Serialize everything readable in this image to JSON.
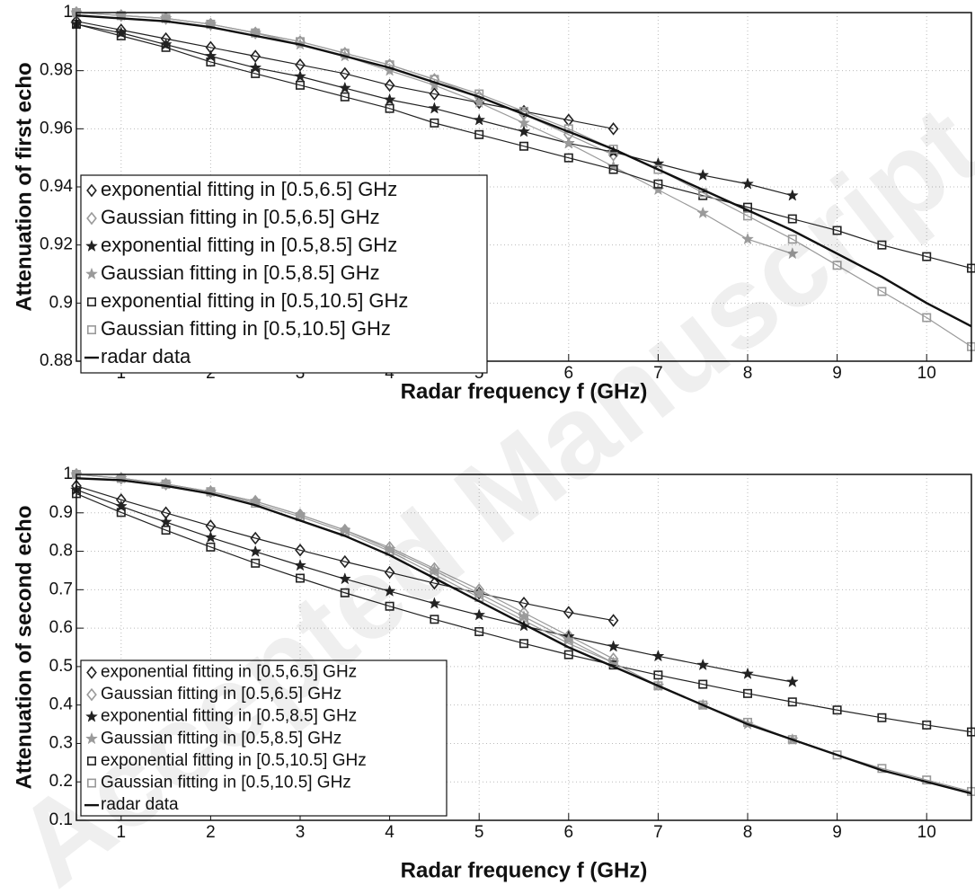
{
  "watermark": "Accepted Manuscript",
  "chart_data": [
    {
      "type": "line",
      "xlabel": "Radar frequency f (GHz)",
      "ylabel": "Attenuation of first echo",
      "x": [
        0.5,
        1,
        1.5,
        2,
        2.5,
        3,
        3.5,
        4,
        4.5,
        5,
        5.5,
        6,
        6.5,
        7,
        7.5,
        8,
        8.5,
        9,
        9.5,
        10,
        10.5
      ],
      "xlim": [
        0.5,
        10.5
      ],
      "xticks": [
        1,
        2,
        3,
        4,
        5,
        6,
        7,
        8,
        9,
        10
      ],
      "ylim": [
        0.88,
        1
      ],
      "yticks": [
        0.88,
        0.9,
        0.92,
        0.94,
        0.96,
        0.98,
        1
      ],
      "grid": true,
      "legend": "lower left",
      "series": [
        {
          "name": "exponential fitting in [0.5,6.5] GHz",
          "color": "#222222",
          "marker": "diamond",
          "values": [
            0.997,
            0.994,
            0.991,
            0.988,
            0.985,
            0.982,
            0.979,
            0.975,
            0.972,
            0.969,
            0.966,
            0.963,
            0.96,
            null,
            null,
            null,
            null,
            null,
            null,
            null,
            null
          ]
        },
        {
          "name": "Gaussian fitting in [0.5,6.5] GHz",
          "color": "#9a9a9a",
          "marker": "diamond",
          "values": [
            1.0,
            0.999,
            0.998,
            0.996,
            0.993,
            0.99,
            0.986,
            0.982,
            0.977,
            0.971,
            0.965,
            0.958,
            0.951,
            null,
            null,
            null,
            null,
            null,
            null,
            null,
            null
          ]
        },
        {
          "name": "exponential fitting in [0.5,8.5] GHz",
          "color": "#222222",
          "marker": "star",
          "values": [
            0.996,
            0.993,
            0.989,
            0.985,
            0.981,
            0.978,
            0.974,
            0.97,
            0.967,
            0.963,
            0.959,
            0.955,
            0.952,
            0.948,
            0.944,
            0.941,
            0.937,
            null,
            null,
            null,
            null
          ]
        },
        {
          "name": "Gaussian fitting in [0.5,8.5] GHz",
          "color": "#9a9a9a",
          "marker": "star",
          "values": [
            1.0,
            0.999,
            0.998,
            0.996,
            0.993,
            0.989,
            0.985,
            0.98,
            0.975,
            0.969,
            0.962,
            0.955,
            0.947,
            0.939,
            0.931,
            0.922,
            0.917,
            null,
            null,
            null,
            null
          ]
        },
        {
          "name": "exponential fitting in [0.5,10.5] GHz",
          "color": "#222222",
          "marker": "square",
          "values": [
            0.996,
            0.992,
            0.988,
            0.983,
            0.979,
            0.975,
            0.971,
            0.967,
            0.962,
            0.958,
            0.954,
            0.95,
            0.946,
            0.941,
            0.937,
            0.933,
            0.929,
            0.925,
            0.92,
            0.916,
            0.912
          ]
        },
        {
          "name": "Gaussian fitting in [0.5,10.5] GHz",
          "color": "#9a9a9a",
          "marker": "square",
          "values": [
            1.0,
            0.999,
            0.998,
            0.996,
            0.993,
            0.99,
            0.986,
            0.982,
            0.977,
            0.972,
            0.966,
            0.96,
            0.953,
            0.946,
            0.938,
            0.93,
            0.922,
            0.913,
            0.904,
            0.895,
            0.885
          ]
        },
        {
          "name": "radar data",
          "color": "#111111",
          "marker": "none",
          "values": [
            0.999,
            0.998,
            0.997,
            0.995,
            0.992,
            0.989,
            0.985,
            0.981,
            0.976,
            0.971,
            0.965,
            0.959,
            0.953,
            0.946,
            0.939,
            0.932,
            0.925,
            0.917,
            0.909,
            0.9,
            0.892
          ]
        }
      ]
    },
    {
      "type": "line",
      "xlabel": "Radar frequency f (GHz)",
      "ylabel": "Attenuation of second echo",
      "x": [
        0.5,
        1,
        1.5,
        2,
        2.5,
        3,
        3.5,
        4,
        4.5,
        5,
        5.5,
        6,
        6.5,
        7,
        7.5,
        8,
        8.5,
        9,
        9.5,
        10,
        10.5
      ],
      "xlim": [
        0.5,
        10.5
      ],
      "xticks": [
        1,
        2,
        3,
        4,
        5,
        6,
        7,
        8,
        9,
        10
      ],
      "ylim": [
        0.1,
        1
      ],
      "yticks": [
        0.1,
        0.2,
        0.3,
        0.4,
        0.5,
        0.6,
        0.7,
        0.8,
        0.9,
        1
      ],
      "grid": true,
      "legend": "lower left",
      "series": [
        {
          "name": "exponential fitting in [0.5,6.5] GHz",
          "color": "#222222",
          "marker": "diamond",
          "values": [
            0.97,
            0.934,
            0.9,
            0.866,
            0.834,
            0.803,
            0.773,
            0.745,
            0.717,
            0.691,
            0.665,
            0.641,
            0.62,
            null,
            null,
            null,
            null,
            null,
            null,
            null,
            null
          ]
        },
        {
          "name": "Gaussian fitting in [0.5,6.5] GHz",
          "color": "#9a9a9a",
          "marker": "diamond",
          "values": [
            1.0,
            0.99,
            0.975,
            0.955,
            0.93,
            0.895,
            0.855,
            0.81,
            0.755,
            0.7,
            0.64,
            0.58,
            0.52,
            null,
            null,
            null,
            null,
            null,
            null,
            null,
            null
          ]
        },
        {
          "name": "exponential fitting in [0.5,8.5] GHz",
          "color": "#222222",
          "marker": "star",
          "values": [
            0.96,
            0.917,
            0.876,
            0.836,
            0.799,
            0.763,
            0.728,
            0.696,
            0.664,
            0.634,
            0.606,
            0.578,
            0.552,
            0.527,
            0.504,
            0.481,
            0.46,
            null,
            null,
            null,
            null
          ]
        },
        {
          "name": "Gaussian fitting in [0.5,8.5] GHz",
          "color": "#9a9a9a",
          "marker": "star",
          "values": [
            1.0,
            0.99,
            0.975,
            0.955,
            0.93,
            0.895,
            0.855,
            0.805,
            0.75,
            0.69,
            0.63,
            0.57,
            0.51,
            0.45,
            0.4,
            0.35,
            0.31,
            null,
            null,
            null,
            null
          ]
        },
        {
          "name": "exponential fitting in [0.5,10.5] GHz",
          "color": "#222222",
          "marker": "square",
          "values": [
            0.95,
            0.901,
            0.855,
            0.811,
            0.769,
            0.73,
            0.692,
            0.657,
            0.623,
            0.591,
            0.56,
            0.531,
            0.504,
            0.478,
            0.454,
            0.43,
            0.408,
            0.387,
            0.367,
            0.348,
            0.33
          ]
        },
        {
          "name": "Gaussian fitting in [0.5,10.5] GHz",
          "color": "#9a9a9a",
          "marker": "square",
          "values": [
            1.0,
            0.99,
            0.975,
            0.955,
            0.925,
            0.89,
            0.85,
            0.8,
            0.74,
            0.68,
            0.62,
            0.56,
            0.51,
            0.45,
            0.4,
            0.355,
            0.31,
            0.27,
            0.235,
            0.205,
            0.175
          ]
        },
        {
          "name": "radar data",
          "color": "#111111",
          "marker": "none",
          "values": [
            0.99,
            0.985,
            0.97,
            0.95,
            0.92,
            0.88,
            0.84,
            0.79,
            0.73,
            0.67,
            0.61,
            0.55,
            0.5,
            0.45,
            0.4,
            0.35,
            0.31,
            0.27,
            0.23,
            0.2,
            0.17
          ]
        }
      ]
    }
  ]
}
